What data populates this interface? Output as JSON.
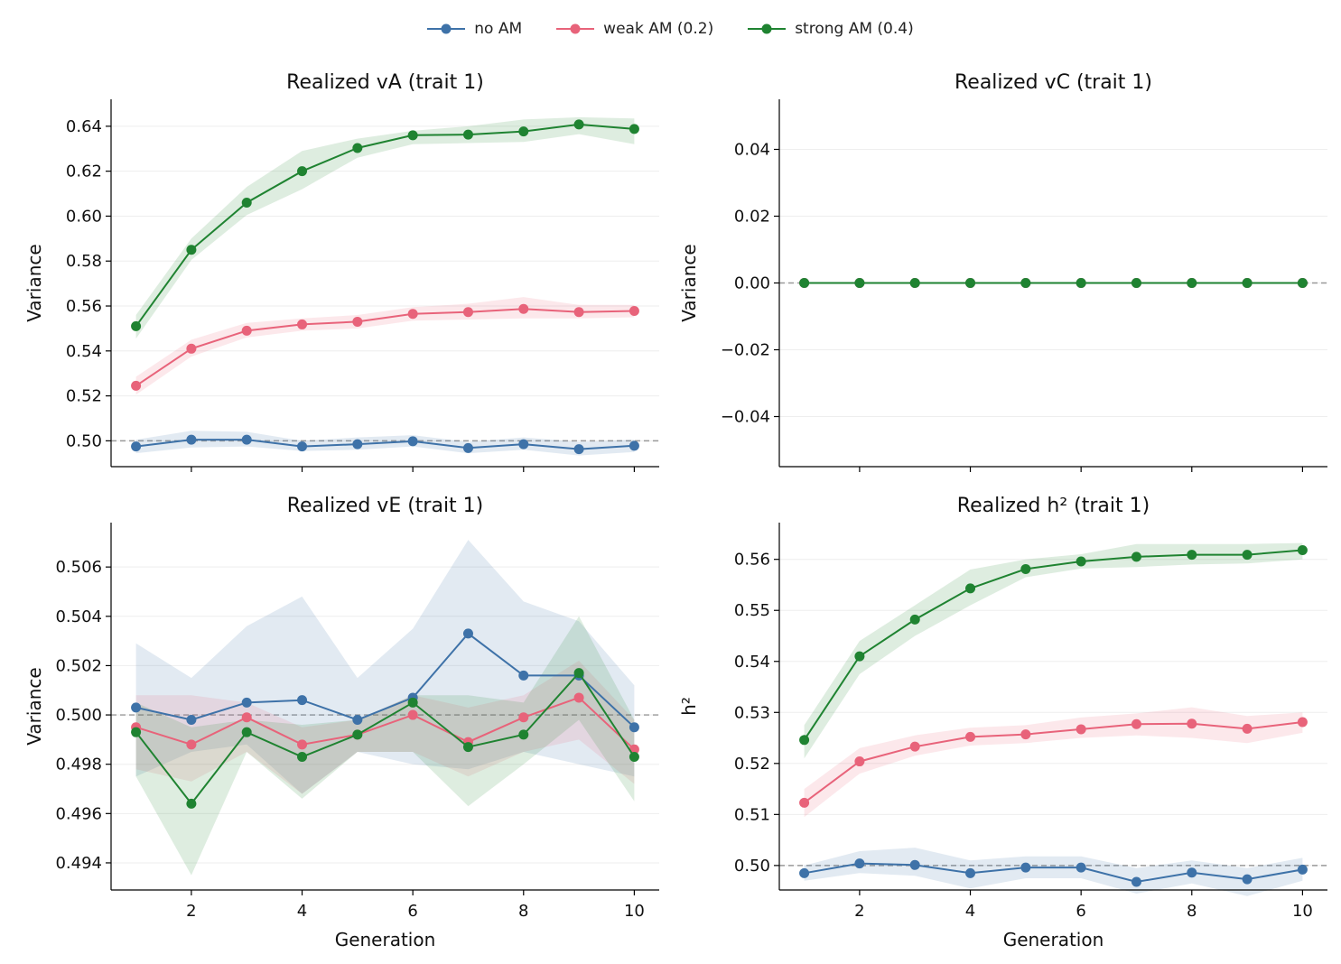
{
  "legend": {
    "items": [
      {
        "label": "no AM",
        "color": "#3e72a8"
      },
      {
        "label": "weak AM (0.2)",
        "color": "#e8637a"
      },
      {
        "label": "strong AM (0.4)",
        "color": "#1f8331"
      }
    ]
  },
  "chart_data": [
    {
      "type": "line",
      "title": "Realized vA (trait 1)",
      "xlabel": "",
      "ylabel": "Variance",
      "xlim": [
        0.55,
        10.45
      ],
      "ylim": [
        0.4885,
        0.652
      ],
      "yticks": [
        0.5,
        0.52,
        0.54,
        0.56,
        0.58,
        0.6,
        0.62,
        0.64
      ],
      "ytick_labels": [
        "0.50",
        "0.52",
        "0.54",
        "0.56",
        "0.58",
        "0.60",
        "0.62",
        "0.64"
      ],
      "xticks": [
        2,
        4,
        6,
        8,
        10
      ],
      "xtick_labels": [],
      "reference_line": 0.5,
      "grid": "horizontal",
      "x": [
        1,
        2,
        3,
        4,
        5,
        6,
        7,
        8,
        9,
        10
      ],
      "series": [
        {
          "values": [
            0.4975,
            0.5005,
            0.5005,
            0.4975,
            0.4985,
            0.4998,
            0.4968,
            0.4985,
            0.4963,
            0.4978
          ],
          "lower": [
            0.4945,
            0.497,
            0.4975,
            0.4955,
            0.496,
            0.4975,
            0.4945,
            0.496,
            0.4935,
            0.495
          ],
          "upper": [
            0.5005,
            0.5045,
            0.504,
            0.5,
            0.5015,
            0.5025,
            0.4995,
            0.5015,
            0.4995,
            0.5005
          ]
        },
        {
          "values": [
            0.5245,
            0.541,
            0.549,
            0.5518,
            0.553,
            0.5565,
            0.5573,
            0.5587,
            0.5573,
            0.5578
          ],
          "lower": [
            0.5205,
            0.5375,
            0.546,
            0.549,
            0.55,
            0.5535,
            0.554,
            0.5545,
            0.5545,
            0.555
          ],
          "upper": [
            0.5285,
            0.545,
            0.5525,
            0.5545,
            0.556,
            0.5595,
            0.561,
            0.564,
            0.5605,
            0.5605
          ]
        },
        {
          "values": [
            0.551,
            0.585,
            0.606,
            0.62,
            0.6303,
            0.636,
            0.6363,
            0.6377,
            0.6408,
            0.6388
          ],
          "lower": [
            0.5455,
            0.5805,
            0.6005,
            0.612,
            0.626,
            0.632,
            0.6325,
            0.633,
            0.6365,
            0.632
          ],
          "upper": [
            0.556,
            0.59,
            0.613,
            0.629,
            0.6345,
            0.638,
            0.64,
            0.643,
            0.644,
            0.6435
          ]
        }
      ]
    },
    {
      "type": "line",
      "title": "Realized vC (trait 1)",
      "xlabel": "",
      "ylabel": "Variance",
      "xlim": [
        0.55,
        10.45
      ],
      "ylim": [
        -0.055,
        0.055
      ],
      "yticks": [
        -0.04,
        -0.02,
        0.0,
        0.02,
        0.04
      ],
      "ytick_labels": [
        "−0.04",
        "−0.02",
        "0.00",
        "0.02",
        "0.04"
      ],
      "xticks": [
        2,
        4,
        6,
        8,
        10
      ],
      "xtick_labels": [],
      "reference_line": 0.0,
      "grid": "horizontal",
      "x": [
        1,
        2,
        3,
        4,
        5,
        6,
        7,
        8,
        9,
        10
      ],
      "series": [
        {
          "values": [
            0,
            0,
            0,
            0,
            0,
            0,
            0,
            0,
            0,
            0
          ],
          "lower": [
            0,
            0,
            0,
            0,
            0,
            0,
            0,
            0,
            0,
            0
          ],
          "upper": [
            0,
            0,
            0,
            0,
            0,
            0,
            0,
            0,
            0,
            0
          ]
        },
        {
          "values": [
            0,
            0,
            0,
            0,
            0,
            0,
            0,
            0,
            0,
            0
          ],
          "lower": [
            0,
            0,
            0,
            0,
            0,
            0,
            0,
            0,
            0,
            0
          ],
          "upper": [
            0,
            0,
            0,
            0,
            0,
            0,
            0,
            0,
            0,
            0
          ]
        },
        {
          "values": [
            0,
            0,
            0,
            0,
            0,
            0,
            0,
            0,
            0,
            0
          ],
          "lower": [
            0,
            0,
            0,
            0,
            0,
            0,
            0,
            0,
            0,
            0
          ],
          "upper": [
            0,
            0,
            0,
            0,
            0,
            0,
            0,
            0,
            0,
            0
          ]
        }
      ]
    },
    {
      "type": "line",
      "title": "Realized vE (trait 1)",
      "xlabel": "Generation",
      "ylabel": "Variance",
      "xlim": [
        0.55,
        10.45
      ],
      "ylim": [
        0.4929,
        0.5078
      ],
      "yticks": [
        0.494,
        0.496,
        0.498,
        0.5,
        0.502,
        0.504,
        0.506
      ],
      "ytick_labels": [
        "0.494",
        "0.496",
        "0.498",
        "0.500",
        "0.502",
        "0.504",
        "0.506"
      ],
      "xticks": [
        2,
        4,
        6,
        8,
        10
      ],
      "xtick_labels": [
        "2",
        "4",
        "6",
        "8",
        "10"
      ],
      "reference_line": 0.5,
      "grid": "horizontal",
      "x": [
        1,
        2,
        3,
        4,
        5,
        6,
        7,
        8,
        9,
        10
      ],
      "series": [
        {
          "values": [
            0.5003,
            0.4998,
            0.5005,
            0.5006,
            0.4998,
            0.5007,
            0.5033,
            0.5016,
            0.5016,
            0.4995
          ],
          "lower": [
            0.4975,
            0.4985,
            0.4988,
            0.4968,
            0.4985,
            0.498,
            0.4978,
            0.4985,
            0.498,
            0.4975
          ],
          "upper": [
            0.5029,
            0.5015,
            0.5036,
            0.5048,
            0.5015,
            0.5035,
            0.5071,
            0.5046,
            0.5038,
            0.5012
          ]
        },
        {
          "values": [
            0.4995,
            0.4988,
            0.4999,
            0.4988,
            0.4992,
            0.5,
            0.4989,
            0.4999,
            0.5007,
            0.4986
          ],
          "lower": [
            0.4978,
            0.4973,
            0.4985,
            0.4968,
            0.4985,
            0.4985,
            0.4975,
            0.4985,
            0.499,
            0.4972
          ],
          "upper": [
            0.5008,
            0.5008,
            0.5005,
            0.4995,
            0.4998,
            0.5008,
            0.5003,
            0.5008,
            0.5022,
            0.4998
          ]
        },
        {
          "values": [
            0.4993,
            0.4964,
            0.4993,
            0.4983,
            0.4992,
            0.5005,
            0.4987,
            0.4992,
            0.5017,
            0.4983
          ],
          "lower": [
            0.4975,
            0.4935,
            0.4985,
            0.4966,
            0.4985,
            0.4985,
            0.4963,
            0.498,
            0.4998,
            0.4965
          ],
          "upper": [
            0.5005,
            0.4995,
            0.4998,
            0.4996,
            0.4998,
            0.5008,
            0.5008,
            0.5005,
            0.504,
            0.4998
          ]
        }
      ]
    },
    {
      "type": "line",
      "title": "Realized h² (trait 1)",
      "xlabel": "Generation",
      "ylabel": "h²",
      "xlim": [
        0.55,
        10.45
      ],
      "ylim": [
        0.4952,
        0.5672
      ],
      "yticks": [
        0.5,
        0.51,
        0.52,
        0.53,
        0.54,
        0.55,
        0.56
      ],
      "ytick_labels": [
        "0.50",
        "0.51",
        "0.52",
        "0.53",
        "0.54",
        "0.55",
        "0.56"
      ],
      "xticks": [
        2,
        4,
        6,
        8,
        10
      ],
      "xtick_labels": [
        "2",
        "4",
        "6",
        "8",
        "10"
      ],
      "reference_line": 0.5,
      "grid": "horizontal",
      "x": [
        1,
        2,
        3,
        4,
        5,
        6,
        7,
        8,
        9,
        10
      ],
      "series": [
        {
          "values": [
            0.4985,
            0.5004,
            0.5001,
            0.4985,
            0.4996,
            0.4996,
            0.4968,
            0.4986,
            0.4973,
            0.4992
          ],
          "lower": [
            0.497,
            0.4985,
            0.498,
            0.4955,
            0.4975,
            0.4975,
            0.4945,
            0.4965,
            0.494,
            0.497
          ],
          "upper": [
            0.5,
            0.5028,
            0.5035,
            0.501,
            0.5018,
            0.5018,
            0.4995,
            0.501,
            0.4995,
            0.5015
          ]
        },
        {
          "values": [
            0.5123,
            0.5204,
            0.5233,
            0.5252,
            0.5257,
            0.5267,
            0.5277,
            0.5278,
            0.5268,
            0.5281
          ],
          "lower": [
            0.5095,
            0.518,
            0.5215,
            0.5235,
            0.524,
            0.525,
            0.5255,
            0.525,
            0.524,
            0.526
          ],
          "upper": [
            0.515,
            0.523,
            0.5255,
            0.527,
            0.5275,
            0.529,
            0.5298,
            0.531,
            0.5293,
            0.53
          ]
        },
        {
          "values": [
            0.5246,
            0.541,
            0.5482,
            0.5543,
            0.5581,
            0.5596,
            0.5605,
            0.5609,
            0.5609,
            0.5618
          ],
          "lower": [
            0.521,
            0.5375,
            0.545,
            0.551,
            0.5565,
            0.5582,
            0.5585,
            0.559,
            0.5592,
            0.56
          ],
          "upper": [
            0.5275,
            0.544,
            0.551,
            0.558,
            0.56,
            0.561,
            0.563,
            0.563,
            0.563,
            0.5632
          ]
        }
      ]
    }
  ]
}
